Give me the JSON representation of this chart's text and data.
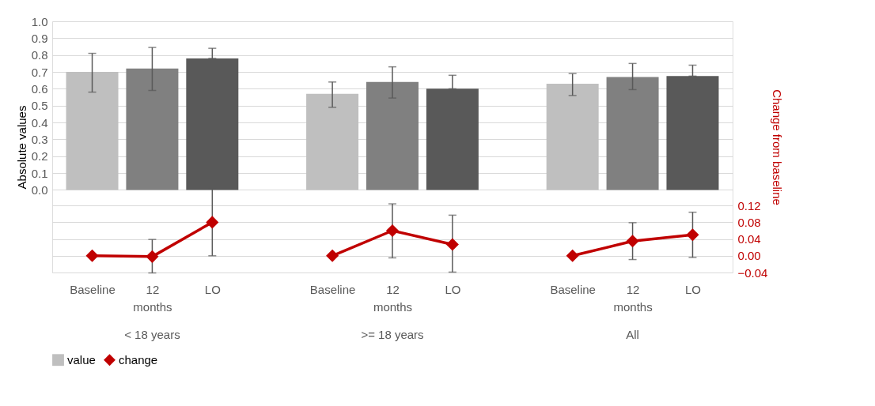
{
  "chart_data": {
    "type": "bar",
    "ylabel": "Absolute values",
    "y2label": "Change from baseline",
    "categories": [
      "Baseline",
      "12 months",
      "LO",
      null,
      "Baseline",
      "12 months",
      "LO",
      null,
      "Baseline",
      "12 months",
      "LO"
    ],
    "series": [
      {
        "name": "value",
        "colors": [
          "#bfbfbf",
          "#808080",
          "#595959",
          null,
          "#bfbfbf",
          "#808080",
          "#595959",
          null,
          "#bfbfbf",
          "#808080",
          "#595959"
        ],
        "values": [
          0.7,
          0.72,
          0.78,
          null,
          0.57,
          0.64,
          0.6,
          null,
          0.63,
          0.67,
          0.675
        ],
        "errors": [
          [
            0.58,
            0.81
          ],
          [
            0.59,
            0.845
          ],
          [
            0.78,
            0.84
          ],
          null,
          [
            0.49,
            0.64
          ],
          [
            0.545,
            0.73
          ],
          [
            0.6,
            0.68
          ],
          null,
          [
            0.56,
            0.69
          ],
          [
            0.595,
            0.75
          ],
          [
            0.675,
            0.74
          ]
        ]
      },
      {
        "name": "change",
        "type": "line",
        "axis": "y2",
        "color": "#c00000",
        "values": [
          0.0,
          -0.002,
          0.08,
          null,
          0.0,
          0.06,
          0.027,
          null,
          0.0,
          0.035,
          0.05
        ],
        "errors": [
          null,
          [
            -0.041,
            0.039
          ],
          [
            0.0,
            0.16
          ],
          null,
          null,
          [
            -0.005,
            0.124
          ],
          [
            -0.039,
            0.097
          ],
          null,
          null,
          [
            -0.009,
            0.079
          ],
          [
            -0.004,
            0.104
          ]
        ]
      }
    ],
    "ylim": [
      -0.49,
      1.0
    ],
    "yticks": [
      {
        "value": 0,
        "label": "0.0"
      },
      0.1,
      0.2,
      0.3,
      0.4,
      0.5,
      0.6,
      0.7,
      0.8,
      0.9,
      {
        "value": 1,
        "label": "1.0"
      }
    ],
    "y2lim": [
      -0.04,
      0.56
    ],
    "y2ticks": [
      -0.04,
      {
        "value": 0,
        "label": "0.00"
      },
      0.04,
      0.08,
      0.12
    ],
    "annotations": [
      "< 18 years",
      ">= 18 years",
      "All"
    ],
    "grid": "y",
    "legend": "bottom",
    "marker": "diamond",
    "line_style": "solid"
  }
}
